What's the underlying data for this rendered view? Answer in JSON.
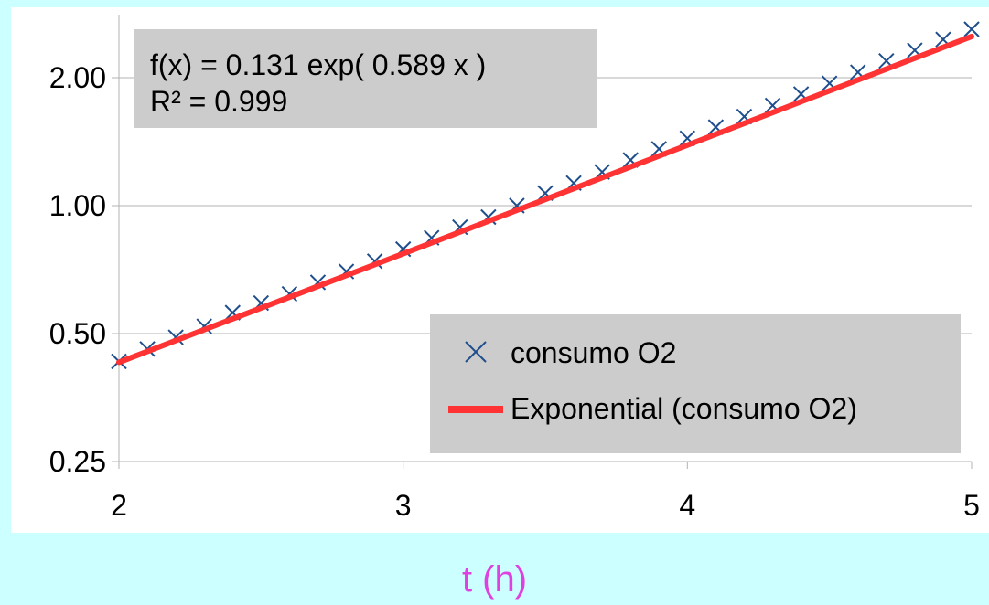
{
  "chart_data": {
    "type": "scatter",
    "xlabel": "t (h)",
    "ylabel": "",
    "xlim": [
      2,
      5
    ],
    "ylim": [
      0.25,
      2.6
    ],
    "yscale": "log",
    "x_ticks": [
      "2",
      "3",
      "4",
      "5"
    ],
    "y_ticks": [
      "0.25",
      "0.50",
      "1.00",
      "2.00"
    ],
    "grid": "horizontal",
    "legend_position": "bottom-right",
    "trendline_equation": "f(x) = 0.131 exp( 0.589 x )",
    "trendline_r2": "R² = 0.999",
    "series": [
      {
        "name": "consumo O2",
        "marker": "x",
        "color": "#1f4e8c",
        "x": [
          2.0,
          2.1,
          2.2,
          2.3,
          2.4,
          2.5,
          2.6,
          2.7,
          2.8,
          2.9,
          3.0,
          3.1,
          3.2,
          3.3,
          3.4,
          3.5,
          3.6,
          3.7,
          3.8,
          3.9,
          4.0,
          4.1,
          4.2,
          4.3,
          4.4,
          4.5,
          4.6,
          4.7,
          4.8,
          4.9,
          5.0
        ],
        "y": [
          0.43,
          0.46,
          0.49,
          0.52,
          0.56,
          0.59,
          0.62,
          0.66,
          0.7,
          0.74,
          0.79,
          0.84,
          0.89,
          0.94,
          1.0,
          1.07,
          1.13,
          1.2,
          1.28,
          1.36,
          1.44,
          1.53,
          1.62,
          1.72,
          1.83,
          1.94,
          2.06,
          2.19,
          2.32,
          2.46,
          2.6
        ]
      },
      {
        "name": "Exponential (consumo O2)",
        "line": true,
        "color": "#ff3333",
        "x": [
          2.0,
          5.0
        ],
        "y": [
          0.428,
          2.5
        ]
      }
    ]
  }
}
